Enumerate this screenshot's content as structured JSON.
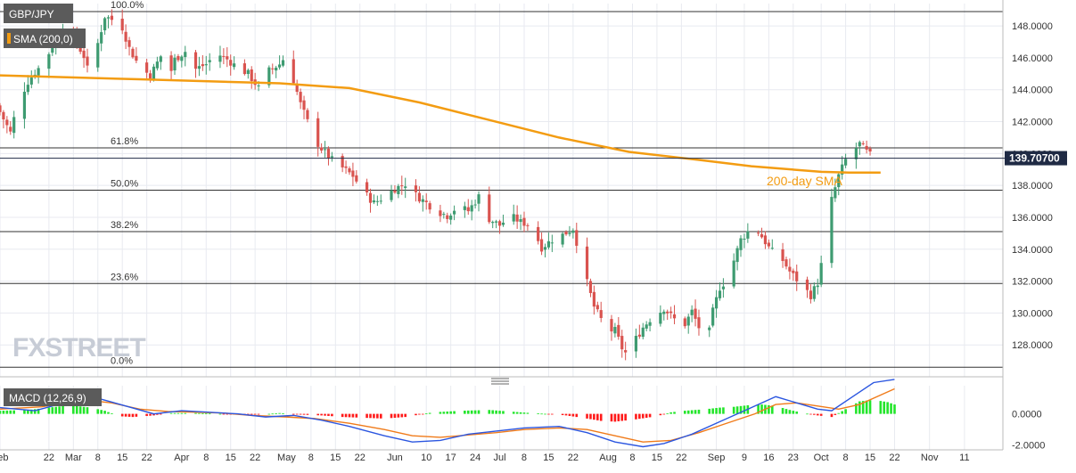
{
  "labels": {
    "symbol": "GBP/JPY",
    "sma": "SMA (200,0)",
    "sma_annotation": "200-day SMA",
    "macd": "MACD (12,26,9)",
    "last_price": "139.70700",
    "watermark": "FXSTREET"
  },
  "colors": {
    "bull": "#3e9b71",
    "bear": "#d9534f",
    "sma": "#f39c12",
    "macd_line": "#2b56e0",
    "signal_line": "#f07b1a",
    "hist_pos": "#22e52a",
    "hist_neg": "#ff1a1a",
    "grid": "#e8eaf0",
    "fib": "#333333",
    "price_tag": "#1f2a44"
  },
  "chart_data": {
    "type": "candlestick",
    "title": "GBP/JPY",
    "ylim": [
      126,
      149.4
    ],
    "y_ticks": [
      "148.0000",
      "146.0000",
      "144.0000",
      "142.0000",
      "140.0000",
      "138.0000",
      "136.0000",
      "134.0000",
      "132.0000",
      "130.0000",
      "128.0000"
    ],
    "y_tick_values": [
      148,
      146,
      144,
      142,
      140,
      138,
      136,
      134,
      132,
      130,
      128
    ],
    "x_ticks": [
      {
        "label": "Feb",
        "day": 0
      },
      {
        "label": "22",
        "day": 14
      },
      {
        "label": "Mar",
        "day": 21
      },
      {
        "label": "8",
        "day": 28
      },
      {
        "label": "15",
        "day": 35
      },
      {
        "label": "22",
        "day": 42
      },
      {
        "label": "Apr",
        "day": 52
      },
      {
        "label": "8",
        "day": 59
      },
      {
        "label": "15",
        "day": 66
      },
      {
        "label": "22",
        "day": 73
      },
      {
        "label": "May",
        "day": 82
      },
      {
        "label": "8",
        "day": 89
      },
      {
        "label": "15",
        "day": 96
      },
      {
        "label": "22",
        "day": 103
      },
      {
        "label": "Jun",
        "day": 113
      },
      {
        "label": "10",
        "day": 122
      },
      {
        "label": "17",
        "day": 129
      },
      {
        "label": "24",
        "day": 136
      },
      {
        "label": "Jul",
        "day": 143
      },
      {
        "label": "8",
        "day": 150
      },
      {
        "label": "15",
        "day": 157
      },
      {
        "label": "22",
        "day": 164
      },
      {
        "label": "Aug",
        "day": 174
      },
      {
        "label": "8",
        "day": 181
      },
      {
        "label": "15",
        "day": 188
      },
      {
        "label": "22",
        "day": 195
      },
      {
        "label": "Sep",
        "day": 205
      },
      {
        "label": "9",
        "day": 213
      },
      {
        "label": "16",
        "day": 220
      },
      {
        "label": "23",
        "day": 227
      },
      {
        "label": "Oct",
        "day": 235
      },
      {
        "label": "8",
        "day": 242
      },
      {
        "label": "15",
        "day": 249
      },
      {
        "label": "22",
        "day": 256
      },
      {
        "label": "Nov",
        "day": 266
      },
      {
        "label": "11",
        "day": 276
      }
    ],
    "fib_levels": [
      {
        "label": "100.0%",
        "value": 148.9
      },
      {
        "label": "61.8%",
        "value": 140.35
      },
      {
        "label": "50.0%",
        "value": 137.7
      },
      {
        "label": "38.2%",
        "value": 135.1
      },
      {
        "label": "23.6%",
        "value": 131.85
      },
      {
        "label": "0.0%",
        "value": 126.6
      }
    ],
    "last_price": 139.707,
    "close_anchors": [
      [
        0,
        142.6
      ],
      [
        3,
        141.3
      ],
      [
        5,
        143.1
      ],
      [
        8,
        144.5
      ],
      [
        10,
        145.1
      ],
      [
        13,
        145.8
      ],
      [
        15,
        146.8
      ],
      [
        18,
        147.9
      ],
      [
        21,
        147.3
      ],
      [
        24,
        146.1
      ],
      [
        26,
        144.5
      ],
      [
        28,
        146.9
      ],
      [
        30,
        148.6
      ],
      [
        32,
        148.4
      ],
      [
        35,
        147.9
      ],
      [
        37,
        146.6
      ],
      [
        40,
        145.4
      ],
      [
        43,
        144.9
      ],
      [
        46,
        146.1
      ],
      [
        48,
        144.5
      ],
      [
        50,
        145.9
      ],
      [
        53,
        146.4
      ],
      [
        56,
        145.3
      ],
      [
        59,
        145.6
      ],
      [
        62,
        146.3
      ],
      [
        65,
        145.9
      ],
      [
        68,
        145.4
      ],
      [
        71,
        145.0
      ],
      [
        74,
        144.1
      ],
      [
        77,
        145.2
      ],
      [
        80,
        145.6
      ],
      [
        82,
        146.2
      ],
      [
        84,
        144.6
      ],
      [
        86,
        143.1
      ],
      [
        88,
        142.0
      ],
      [
        90,
        140.9
      ],
      [
        92,
        140.3
      ],
      [
        95,
        139.6
      ],
      [
        98,
        139.1
      ],
      [
        101,
        138.6
      ],
      [
        104,
        137.6
      ],
      [
        107,
        136.9
      ],
      [
        110,
        137.3
      ],
      [
        113,
        137.8
      ],
      [
        116,
        138.1
      ],
      [
        119,
        137.4
      ],
      [
        122,
        136.9
      ],
      [
        125,
        136.4
      ],
      [
        128,
        136.1
      ],
      [
        131,
        136.7
      ],
      [
        134,
        136.4
      ],
      [
        137,
        137.3
      ],
      [
        140,
        135.9
      ],
      [
        143,
        135.5
      ],
      [
        146,
        136.1
      ],
      [
        149,
        135.7
      ],
      [
        152,
        135.5
      ],
      [
        155,
        134.1
      ],
      [
        158,
        134.6
      ],
      [
        161,
        134.9
      ],
      [
        164,
        135.3
      ],
      [
        166,
        133.6
      ],
      [
        168,
        131.9
      ],
      [
        170,
        130.4
      ],
      [
        172,
        129.6
      ],
      [
        174,
        128.9
      ],
      [
        176,
        128.9
      ],
      [
        178,
        127.8
      ],
      [
        180,
        127.2
      ],
      [
        182,
        128.4
      ],
      [
        184,
        129.1
      ],
      [
        186,
        129.6
      ],
      [
        188,
        129.9
      ],
      [
        190,
        130.3
      ],
      [
        193,
        129.6
      ],
      [
        196,
        129.3
      ],
      [
        198,
        130.1
      ],
      [
        200,
        129.1
      ],
      [
        202,
        127.6
      ],
      [
        204,
        130.1
      ],
      [
        206,
        131.6
      ],
      [
        208,
        132.1
      ],
      [
        210,
        133.3
      ],
      [
        212,
        134.6
      ],
      [
        214,
        135.1
      ],
      [
        216,
        135.4
      ],
      [
        218,
        134.8
      ],
      [
        220,
        134.1
      ],
      [
        222,
        133.6
      ],
      [
        224,
        133.3
      ],
      [
        226,
        132.6
      ],
      [
        228,
        132.1
      ],
      [
        230,
        131.6
      ],
      [
        232,
        131.1
      ],
      [
        234,
        131.9
      ],
      [
        236,
        134.1
      ],
      [
        238,
        137.1
      ],
      [
        240,
        138.6
      ],
      [
        242,
        139.6
      ],
      [
        244,
        140.1
      ],
      [
        246,
        140.6
      ],
      [
        248,
        140.1
      ],
      [
        250,
        139.7
      ]
    ],
    "sma_points": [
      [
        0,
        144.9
      ],
      [
        40,
        144.65
      ],
      [
        80,
        144.4
      ],
      [
        100,
        144.1
      ],
      [
        120,
        143.2
      ],
      [
        140,
        142.1
      ],
      [
        160,
        141.0
      ],
      [
        180,
        140.1
      ],
      [
        200,
        139.6
      ],
      [
        215,
        139.2
      ],
      [
        235,
        138.85
      ],
      [
        243,
        138.8
      ],
      [
        252,
        138.8
      ]
    ],
    "macd": {
      "ylim": [
        -2.3,
        1.8
      ],
      "y_ticks": [
        "0.0000",
        "-2.0000"
      ],
      "y_tick_values": [
        0,
        -2
      ],
      "macd_line_points": [
        [
          0,
          0.4
        ],
        [
          10,
          0.2
        ],
        [
          20,
          0.8
        ],
        [
          28,
          1.0
        ],
        [
          36,
          0.5
        ],
        [
          44,
          0.0
        ],
        [
          52,
          0.2
        ],
        [
          60,
          0.1
        ],
        [
          68,
          0.0
        ],
        [
          76,
          -0.2
        ],
        [
          84,
          -0.1
        ],
        [
          92,
          -0.4
        ],
        [
          100,
          -0.8
        ],
        [
          110,
          -1.4
        ],
        [
          118,
          -1.8
        ],
        [
          126,
          -1.7
        ],
        [
          134,
          -1.3
        ],
        [
          142,
          -1.1
        ],
        [
          150,
          -0.9
        ],
        [
          160,
          -0.8
        ],
        [
          168,
          -1.2
        ],
        [
          176,
          -1.8
        ],
        [
          184,
          -2.1
        ],
        [
          190,
          -1.9
        ],
        [
          198,
          -1.3
        ],
        [
          206,
          -0.5
        ],
        [
          214,
          0.3
        ],
        [
          222,
          1.1
        ],
        [
          228,
          0.7
        ],
        [
          234,
          0.3
        ],
        [
          238,
          0.2
        ],
        [
          244,
          1.1
        ],
        [
          250,
          2.0
        ],
        [
          256,
          2.2
        ]
      ],
      "signal_line_points": [
        [
          0,
          0.3
        ],
        [
          12,
          0.45
        ],
        [
          24,
          0.9
        ],
        [
          32,
          0.7
        ],
        [
          40,
          0.3
        ],
        [
          48,
          0.15
        ],
        [
          56,
          0.1
        ],
        [
          64,
          0.05
        ],
        [
          72,
          -0.1
        ],
        [
          82,
          -0.2
        ],
        [
          90,
          -0.3
        ],
        [
          100,
          -0.6
        ],
        [
          110,
          -1.0
        ],
        [
          118,
          -1.4
        ],
        [
          126,
          -1.5
        ],
        [
          134,
          -1.35
        ],
        [
          142,
          -1.2
        ],
        [
          150,
          -1.0
        ],
        [
          160,
          -0.9
        ],
        [
          168,
          -1.0
        ],
        [
          176,
          -1.4
        ],
        [
          184,
          -1.8
        ],
        [
          192,
          -1.7
        ],
        [
          200,
          -1.2
        ],
        [
          208,
          -0.6
        ],
        [
          216,
          0.0
        ],
        [
          222,
          0.6
        ],
        [
          228,
          0.7
        ],
        [
          234,
          0.5
        ],
        [
          240,
          0.3
        ],
        [
          246,
          0.6
        ],
        [
          252,
          1.2
        ],
        [
          256,
          1.6
        ]
      ],
      "histogram_anchors": [
        [
          0,
          0.2
        ],
        [
          8,
          0.25
        ],
        [
          16,
          0.45
        ],
        [
          20,
          0.55
        ],
        [
          26,
          0.4
        ],
        [
          30,
          0.2
        ],
        [
          34,
          -0.15
        ],
        [
          38,
          -0.2
        ],
        [
          44,
          -0.1
        ],
        [
          48,
          0.05
        ],
        [
          56,
          0.05
        ],
        [
          60,
          0.02
        ],
        [
          66,
          -0.02
        ],
        [
          74,
          -0.05
        ],
        [
          80,
          0.05
        ],
        [
          86,
          -0.05
        ],
        [
          92,
          -0.1
        ],
        [
          98,
          -0.2
        ],
        [
          104,
          -0.25
        ],
        [
          110,
          -0.3
        ],
        [
          116,
          -0.2
        ],
        [
          120,
          -0.05
        ],
        [
          124,
          0.1
        ],
        [
          132,
          0.2
        ],
        [
          140,
          0.25
        ],
        [
          146,
          0.15
        ],
        [
          152,
          0.05
        ],
        [
          158,
          -0.02
        ],
        [
          162,
          -0.1
        ],
        [
          168,
          -0.3
        ],
        [
          172,
          -0.45
        ],
        [
          176,
          -0.5
        ],
        [
          182,
          -0.35
        ],
        [
          188,
          -0.15
        ],
        [
          192,
          0.1
        ],
        [
          196,
          0.2
        ],
        [
          202,
          0.3
        ],
        [
          206,
          0.4
        ],
        [
          210,
          0.45
        ],
        [
          214,
          0.55
        ],
        [
          218,
          0.6
        ],
        [
          222,
          0.5
        ],
        [
          226,
          0.25
        ],
        [
          230,
          0.05
        ],
        [
          234,
          -0.1
        ],
        [
          238,
          -0.2
        ],
        [
          242,
          0.3
        ],
        [
          246,
          0.8
        ],
        [
          250,
          0.9
        ],
        [
          254,
          0.75
        ],
        [
          256,
          0.6
        ]
      ]
    }
  }
}
